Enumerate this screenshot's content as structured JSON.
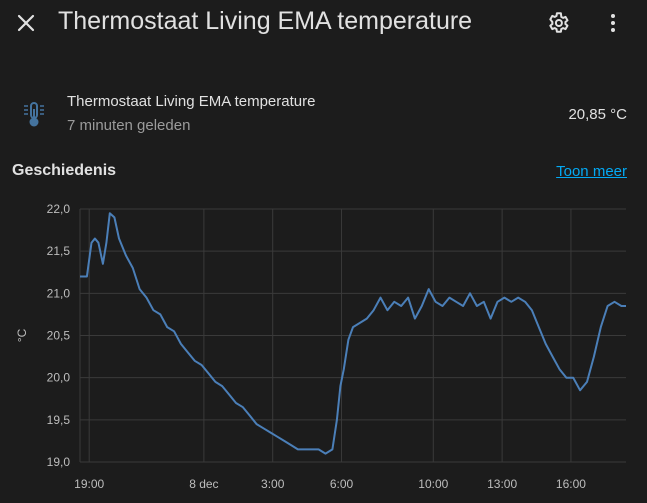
{
  "header": {
    "title": "Thermostaat Living EMA temperature",
    "close_icon": "close-icon",
    "settings_icon": "gear-icon",
    "menu_icon": "more-vertical-icon"
  },
  "entity": {
    "icon": "thermometer-icon",
    "name": "Thermostaat Living EMA temperature",
    "last_changed": "7 minuten geleden",
    "state": "20,85 °C"
  },
  "history": {
    "title": "Geschiedenis",
    "show_more": "Toon meer"
  },
  "colors": {
    "background": "#1c1c1c",
    "line": "#4b7fb8",
    "grid": "#3a3a3a",
    "link": "#03a9f4"
  },
  "chart_data": {
    "type": "line",
    "ylabel": "°C",
    "ylim": [
      19.0,
      22.0
    ],
    "y_ticks": [
      "22,0",
      "21,5",
      "21,0",
      "20,5",
      "20,0",
      "19,5",
      "19,0"
    ],
    "y_tick_values": [
      22.0,
      21.5,
      21.0,
      20.5,
      20.0,
      19.5,
      19.0
    ],
    "x_ticks": [
      "19:00",
      "8 dec",
      "3:00",
      "6:00",
      "10:00",
      "13:00",
      "16:00"
    ],
    "x_tick_hours": [
      0,
      5,
      8,
      11,
      15,
      18,
      21
    ],
    "xlim_hours": [
      -0.4,
      23.4
    ],
    "grid": true,
    "series": [
      {
        "name": "",
        "x_hours": [
          -0.4,
          -0.1,
          0.1,
          0.25,
          0.4,
          0.6,
          0.75,
          0.9,
          1.1,
          1.3,
          1.6,
          1.9,
          2.2,
          2.5,
          2.8,
          3.1,
          3.4,
          3.7,
          4.0,
          4.3,
          4.6,
          4.9,
          5.2,
          5.5,
          5.8,
          6.1,
          6.4,
          6.7,
          7.0,
          7.3,
          7.6,
          7.9,
          8.2,
          8.5,
          8.8,
          9.1,
          9.4,
          9.7,
          10.0,
          10.3,
          10.6,
          10.8,
          10.95,
          11.1,
          11.3,
          11.5,
          11.8,
          12.1,
          12.4,
          12.7,
          13.0,
          13.3,
          13.6,
          13.9,
          14.2,
          14.5,
          14.8,
          15.1,
          15.4,
          15.7,
          16.0,
          16.3,
          16.6,
          16.9,
          17.2,
          17.5,
          17.8,
          18.1,
          18.4,
          18.7,
          19.0,
          19.3,
          19.6,
          19.9,
          20.2,
          20.5,
          20.8,
          21.1,
          21.4,
          21.7,
          22.0,
          22.3,
          22.6,
          22.9,
          23.2,
          23.4
        ],
        "y": [
          21.2,
          21.2,
          21.6,
          21.65,
          21.6,
          21.35,
          21.6,
          21.95,
          21.9,
          21.65,
          21.45,
          21.3,
          21.05,
          20.95,
          20.8,
          20.75,
          20.6,
          20.55,
          20.4,
          20.3,
          20.2,
          20.15,
          20.05,
          19.95,
          19.9,
          19.8,
          19.7,
          19.65,
          19.55,
          19.45,
          19.4,
          19.35,
          19.3,
          19.25,
          19.2,
          19.15,
          19.15,
          19.15,
          19.15,
          19.1,
          19.15,
          19.5,
          19.9,
          20.1,
          20.45,
          20.6,
          20.65,
          20.7,
          20.8,
          20.95,
          20.8,
          20.9,
          20.85,
          20.95,
          20.7,
          20.85,
          21.05,
          20.9,
          20.85,
          20.95,
          20.9,
          20.85,
          21.0,
          20.85,
          20.9,
          20.7,
          20.9,
          20.95,
          20.9,
          20.95,
          20.9,
          20.8,
          20.6,
          20.4,
          20.25,
          20.1,
          20.0,
          20.0,
          19.85,
          19.95,
          20.25,
          20.6,
          20.85,
          20.9,
          20.85,
          20.85
        ]
      }
    ]
  }
}
